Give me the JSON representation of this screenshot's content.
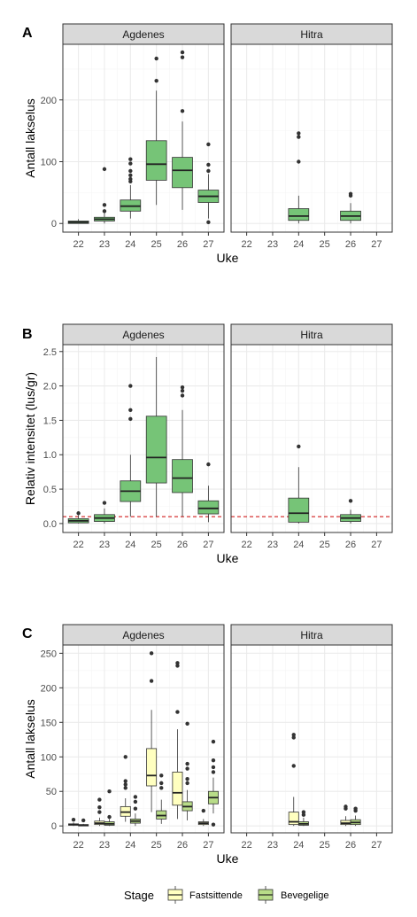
{
  "chart_data": [
    {
      "tag": "A",
      "type": "boxplot",
      "ylabel": "Antall lakselus",
      "xlabel": "Uke",
      "ylim": [
        -14,
        290
      ],
      "yticks": [
        0,
        100,
        200
      ],
      "xticks": [
        22,
        23,
        24,
        25,
        26,
        27
      ],
      "panels": [
        {
          "name": "Agdenes",
          "boxes": [
            {
              "x": 22,
              "stage": "Bevegelige",
              "min": 0,
              "q1": 0,
              "median": 2,
              "q3": 4,
              "max": 7,
              "outliers": []
            },
            {
              "x": 23,
              "stage": "Bevegelige",
              "min": 0,
              "q1": 4,
              "median": 7,
              "q3": 10,
              "max": 18,
              "outliers": [
                20,
                30,
                88
              ]
            },
            {
              "x": 24,
              "stage": "Bevegelige",
              "min": 8,
              "q1": 20,
              "median": 28,
              "q3": 38,
              "max": 62,
              "outliers": [
                68,
                72,
                78,
                85,
                97,
                104
              ]
            },
            {
              "x": 25,
              "stage": "Bevegelige",
              "min": 30,
              "q1": 70,
              "median": 96,
              "q3": 134,
              "max": 215,
              "outliers": [
                231,
                267
              ]
            },
            {
              "x": 26,
              "stage": "Bevegelige",
              "min": 22,
              "q1": 58,
              "median": 86,
              "q3": 107,
              "max": 165,
              "outliers": [
                182,
                269,
                277
              ]
            },
            {
              "x": 27,
              "stage": "Bevegelige",
              "min": 8,
              "q1": 34,
              "median": 44,
              "q3": 54,
              "max": 80,
              "outliers": [
                2,
                85,
                95,
                128
              ]
            }
          ]
        },
        {
          "name": "Hitra",
          "boxes": [
            {
              "x": 24,
              "stage": "Bevegelige",
              "min": 0,
              "q1": 5,
              "median": 12,
              "q3": 24,
              "max": 45,
              "outliers": [
                100,
                140,
                146
              ]
            },
            {
              "x": 26,
              "stage": "Bevegelige",
              "min": 0,
              "q1": 5,
              "median": 12,
              "q3": 20,
              "max": 33,
              "outliers": [
                45,
                48
              ]
            }
          ]
        }
      ]
    },
    {
      "tag": "B",
      "type": "boxplot",
      "ylabel": "Relativ intensitet (lus/gr)",
      "xlabel": "Uke",
      "ylim": [
        -0.13,
        2.6
      ],
      "yticks": [
        0.0,
        0.5,
        1.0,
        1.5,
        2.0,
        2.5
      ],
      "ytick_labels": [
        "0.0",
        "0.5",
        "1.0",
        "1.5",
        "2.0",
        "2.5"
      ],
      "xticks": [
        22,
        23,
        24,
        25,
        26,
        27
      ],
      "hline": 0.1,
      "panels": [
        {
          "name": "Agdenes",
          "boxes": [
            {
              "x": 22,
              "stage": "Bevegelige",
              "min": 0,
              "q1": 0.01,
              "median": 0.04,
              "q3": 0.07,
              "max": 0.12,
              "outliers": [
                0.15
              ]
            },
            {
              "x": 23,
              "stage": "Bevegelige",
              "min": 0,
              "q1": 0.03,
              "median": 0.08,
              "q3": 0.13,
              "max": 0.22,
              "outliers": [
                0.3
              ]
            },
            {
              "x": 24,
              "stage": "Bevegelige",
              "min": 0.1,
              "q1": 0.32,
              "median": 0.47,
              "q3": 0.62,
              "max": 1.0,
              "outliers": [
                1.52,
                1.65,
                2.0
              ]
            },
            {
              "x": 25,
              "stage": "Bevegelige",
              "min": 0.1,
              "q1": 0.59,
              "median": 0.96,
              "q3": 1.56,
              "max": 2.42,
              "outliers": []
            },
            {
              "x": 26,
              "stage": "Bevegelige",
              "min": 0.1,
              "q1": 0.45,
              "median": 0.66,
              "q3": 0.93,
              "max": 1.65,
              "outliers": [
                1.86,
                1.93,
                1.98
              ]
            },
            {
              "x": 27,
              "stage": "Bevegelige",
              "min": 0.02,
              "q1": 0.14,
              "median": 0.22,
              "q3": 0.33,
              "max": 0.55,
              "outliers": [
                0.86
              ]
            }
          ]
        },
        {
          "name": "Hitra",
          "boxes": [
            {
              "x": 24,
              "stage": "Bevegelige",
              "min": 0,
              "q1": 0.02,
              "median": 0.15,
              "q3": 0.37,
              "max": 0.82,
              "outliers": [
                1.12
              ]
            },
            {
              "x": 26,
              "stage": "Bevegelige",
              "min": 0,
              "q1": 0.03,
              "median": 0.08,
              "q3": 0.13,
              "max": 0.2,
              "outliers": [
                0.33
              ]
            }
          ]
        }
      ]
    },
    {
      "tag": "C",
      "type": "boxplot",
      "ylabel": "Antall lakselus",
      "xlabel": "Uke",
      "ylim": [
        -10,
        262
      ],
      "yticks": [
        0,
        50,
        100,
        150,
        200,
        250
      ],
      "xticks": [
        22,
        23,
        24,
        25,
        26,
        27
      ],
      "legend": {
        "title": "Stage",
        "position": "bottom",
        "entries": [
          {
            "name": "Fastsittende",
            "color": "#FFFFC0"
          },
          {
            "name": "Bevegelige",
            "color": "#B8DC88"
          }
        ]
      },
      "panels": [
        {
          "name": "Agdenes",
          "boxes": [
            {
              "x": 22,
              "stage": "Fastsittende",
              "min": 0,
              "q1": 1,
              "median": 2,
              "q3": 3,
              "max": 5,
              "outliers": [
                9
              ]
            },
            {
              "x": 22,
              "stage": "Bevegelige",
              "min": 0,
              "q1": 0,
              "median": 1,
              "q3": 2,
              "max": 3,
              "outliers": [
                8
              ]
            },
            {
              "x": 23,
              "stage": "Fastsittende",
              "min": 0,
              "q1": 2,
              "median": 4,
              "q3": 7,
              "max": 12,
              "outliers": [
                20,
                27,
                38
              ]
            },
            {
              "x": 23,
              "stage": "Bevegelige",
              "min": 0,
              "q1": 1,
              "median": 3,
              "q3": 6,
              "max": 10,
              "outliers": [
                13,
                50
              ]
            },
            {
              "x": 24,
              "stage": "Fastsittende",
              "min": 6,
              "q1": 14,
              "median": 20,
              "q3": 28,
              "max": 40,
              "outliers": [
                55,
                60,
                65,
                100
              ]
            },
            {
              "x": 24,
              "stage": "Bevegelige",
              "min": 0,
              "q1": 4,
              "median": 7,
              "q3": 10,
              "max": 18,
              "outliers": [
                25,
                35,
                42
              ]
            },
            {
              "x": 25,
              "stage": "Fastsittende",
              "min": 20,
              "q1": 58,
              "median": 73,
              "q3": 112,
              "max": 168,
              "outliers": [
                210,
                250
              ]
            },
            {
              "x": 25,
              "stage": "Bevegelige",
              "min": 3,
              "q1": 10,
              "median": 15,
              "q3": 22,
              "max": 38,
              "outliers": [
                55,
                62,
                73
              ]
            },
            {
              "x": 26,
              "stage": "Fastsittende",
              "min": 10,
              "q1": 30,
              "median": 48,
              "q3": 78,
              "max": 140,
              "outliers": [
                165,
                232,
                236
              ]
            },
            {
              "x": 26,
              "stage": "Bevegelige",
              "min": 8,
              "q1": 22,
              "median": 28,
              "q3": 35,
              "max": 52,
              "outliers": [
                62,
                68,
                83,
                90,
                148
              ]
            },
            {
              "x": 27,
              "stage": "Fastsittende",
              "min": 0,
              "q1": 2,
              "median": 4,
              "q3": 6,
              "max": 10,
              "outliers": [
                22
              ]
            },
            {
              "x": 27,
              "stage": "Bevegelige",
              "min": 18,
              "q1": 32,
              "median": 41,
              "q3": 50,
              "max": 70,
              "outliers": [
                2,
                78,
                85,
                95,
                122
              ]
            }
          ]
        },
        {
          "name": "Hitra",
          "boxes": [
            {
              "x": 24,
              "stage": "Fastsittende",
              "min": 0,
              "q1": 2,
              "median": 6,
              "q3": 20,
              "max": 42,
              "outliers": [
                87,
                128,
                132
              ]
            },
            {
              "x": 24,
              "stage": "Bevegelige",
              "min": 0,
              "q1": 1,
              "median": 3,
              "q3": 6,
              "max": 12,
              "outliers": [
                16,
                20
              ]
            },
            {
              "x": 26,
              "stage": "Fastsittende",
              "min": 0,
              "q1": 2,
              "median": 4,
              "q3": 8,
              "max": 14,
              "outliers": [
                25,
                28
              ]
            },
            {
              "x": 26,
              "stage": "Bevegelige",
              "min": 0,
              "q1": 2,
              "median": 5,
              "q3": 9,
              "max": 15,
              "outliers": [
                22,
                25
              ]
            }
          ]
        }
      ]
    }
  ],
  "colors": {
    "box_single": "#76C477",
    "fastsittende": "#FFFFC0",
    "bevegelige": "#B8DC88",
    "strip": "#D9D9D9",
    "grid_major": "#EBEBEB",
    "grid_minor": "#F5F5F5",
    "hline": "#CC0000"
  }
}
